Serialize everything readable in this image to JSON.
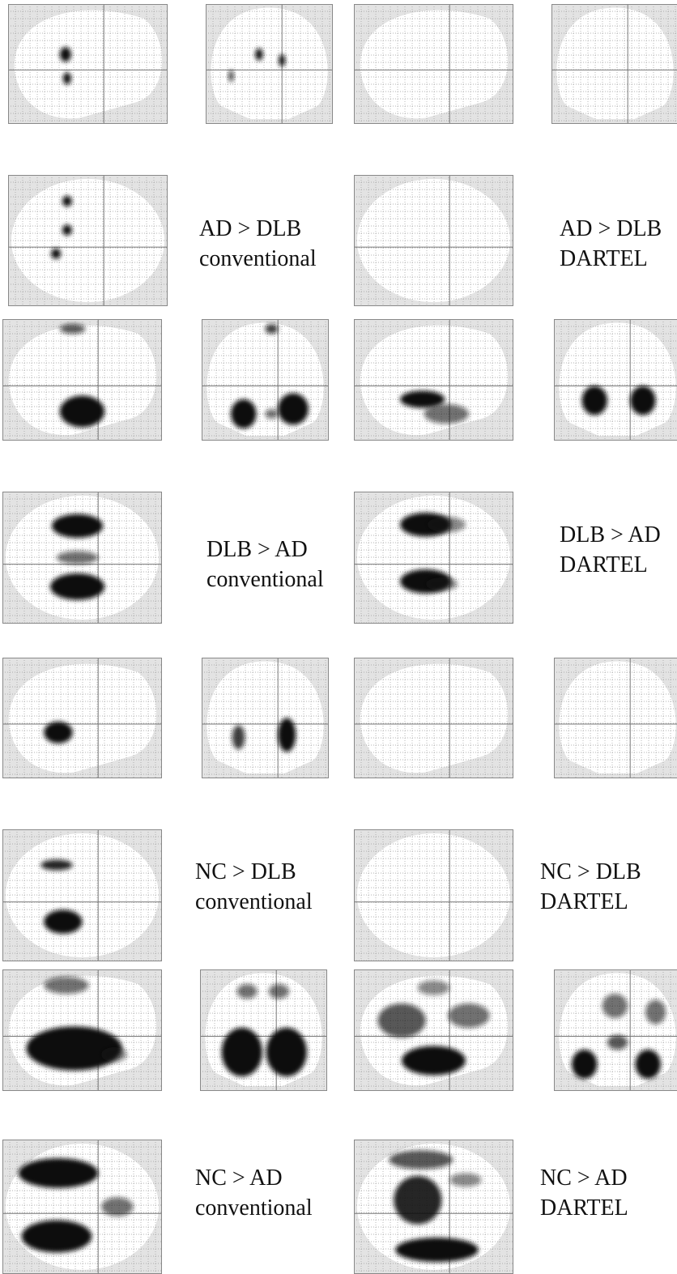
{
  "figure": {
    "rows": [
      {
        "id": "ad-gt-dlb",
        "conventional_label": {
          "line1": "AD > DLB",
          "line2": "conventional"
        },
        "dartel_label": {
          "line1": "AD > DLB",
          "line2": "DARTEL"
        }
      },
      {
        "id": "dlb-gt-ad",
        "conventional_label": {
          "line1": "DLB > AD",
          "line2": "conventional"
        },
        "dartel_label": {
          "line1": "DLB > AD",
          "line2": "DARTEL"
        }
      },
      {
        "id": "nc-gt-dlb",
        "conventional_label": {
          "line1": "NC > DLB",
          "line2": "conventional"
        },
        "dartel_label": {
          "line1": "NC > DLB",
          "line2": "DARTEL"
        }
      },
      {
        "id": "nc-gt-ad",
        "conventional_label": {
          "line1": "NC > AD",
          "line2": "conventional"
        },
        "dartel_label": {
          "line1": "NC > AD",
          "line2": "DARTEL"
        }
      }
    ]
  },
  "colors": {
    "background": "#ffffff",
    "brain_fill": "#e3e3e3",
    "glass_bg": "#ffffff",
    "grid_line": "#9a9a9a",
    "blob_dark": "#111111"
  }
}
